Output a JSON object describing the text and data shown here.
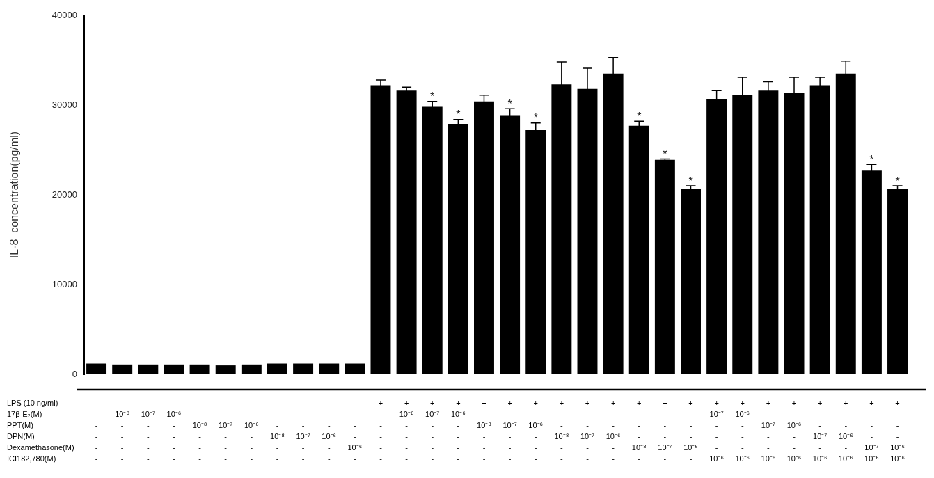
{
  "chart_data": {
    "type": "bar",
    "ylabel": "IL-8  concentration(pg/ml)",
    "categories": [
      "-\n-\n-\n-\n-\n-",
      "-\n10⁻⁸\n-\n-\n-\n-",
      "-\n10⁻⁷\n-\n-\n-\n-",
      "-\n10⁻⁶\n-\n-\n-\n-",
      "-\n-\n10⁻⁸\n-\n-\n-",
      "-\n-\n10⁻⁷\n-\n-\n-",
      "-\n-\n10⁻⁶\n-\n-\n-",
      "-\n-\n-\n10⁻⁸\n-\n-",
      "-\n-\n-\n10⁻⁷\n-\n-",
      "-\n-\n-\n10⁻⁶\n-\n-",
      "-\n-\n-\n-\n10⁻⁶\n-",
      "+\n-\n-\n-\n-\n-",
      "+\n10⁻⁸\n-\n-\n-\n-",
      "+\n10⁻⁷\n-\n-\n-\n-",
      "+\n10⁻⁶\n-\n-\n-\n-",
      "+\n-\n10⁻⁸\n-\n-\n-",
      "+\n-\n10⁻⁷\n-\n-\n-",
      "+\n-\n10⁻⁶\n-\n-\n-",
      "+\n-\n-\n10⁻⁸\n-\n-",
      "+\n-\n-\n10⁻⁷\n-\n-",
      "+\n-\n-\n10⁻⁶\n-\n-",
      "+\n-\n-\n-\n10⁻⁸\n-",
      "+\n-\n-\n-\n10⁻⁷\n-",
      "+\n-\n-\n-\n10⁻⁶\n-",
      "+\n10⁻⁷\n-\n-\n-\n10⁻⁶",
      "+\n10⁻⁶\n-\n-\n-\n10⁻⁶",
      "+\n-\n10⁻⁷\n-\n-\n10⁻⁶",
      "+\n-\n10⁻⁶\n-\n-\n10⁻⁶",
      "+\n-\n-\n10⁻⁷\n-\n10⁻⁶",
      "+\n-\n-\n10⁻⁶\n-\n10⁻⁶",
      "+\n-\n-\n-\n10⁻⁷\n10⁻⁶",
      "+\n-\n-\n-\n10⁻⁶\n10⁻⁶"
    ],
    "values": [
      1200,
      1100,
      1100,
      1100,
      1100,
      1000,
      1100,
      1200,
      1200,
      1200,
      1200,
      32200,
      31600,
      29800,
      27900,
      30400,
      28800,
      27200,
      32300,
      31800,
      33500,
      27700,
      23900,
      20700,
      30700,
      31100,
      31600,
      31400,
      32200,
      33500,
      22700,
      20700
    ],
    "errors": [
      null,
      null,
      null,
      null,
      null,
      null,
      null,
      null,
      null,
      null,
      null,
      600,
      400,
      600,
      500,
      700,
      800,
      800,
      2500,
      2300,
      1800,
      500,
      100,
      300,
      900,
      2000,
      1000,
      1700,
      900,
      1400,
      700,
      300
    ],
    "value_labels": [
      null,
      null,
      null,
      null,
      null,
      null,
      null,
      null,
      null,
      null,
      null,
      null,
      null,
      "*",
      "*",
      null,
      "*",
      "*",
      null,
      null,
      null,
      "*",
      "*",
      "*",
      null,
      null,
      null,
      null,
      null,
      null,
      "*",
      "*"
    ],
    "color": "#000000",
    "ylim": [
      0,
      40000
    ],
    "yticks": [
      0,
      10000,
      20000,
      30000,
      40000
    ],
    "annotations": [
      "LPS (10 ng/ml)",
      "17β-E₂(M)",
      "PPT(M)",
      "DPN(M)",
      "Dexamethasone(M)",
      "ICI182,780(M)"
    ],
    "grid": false,
    "legend": false
  }
}
